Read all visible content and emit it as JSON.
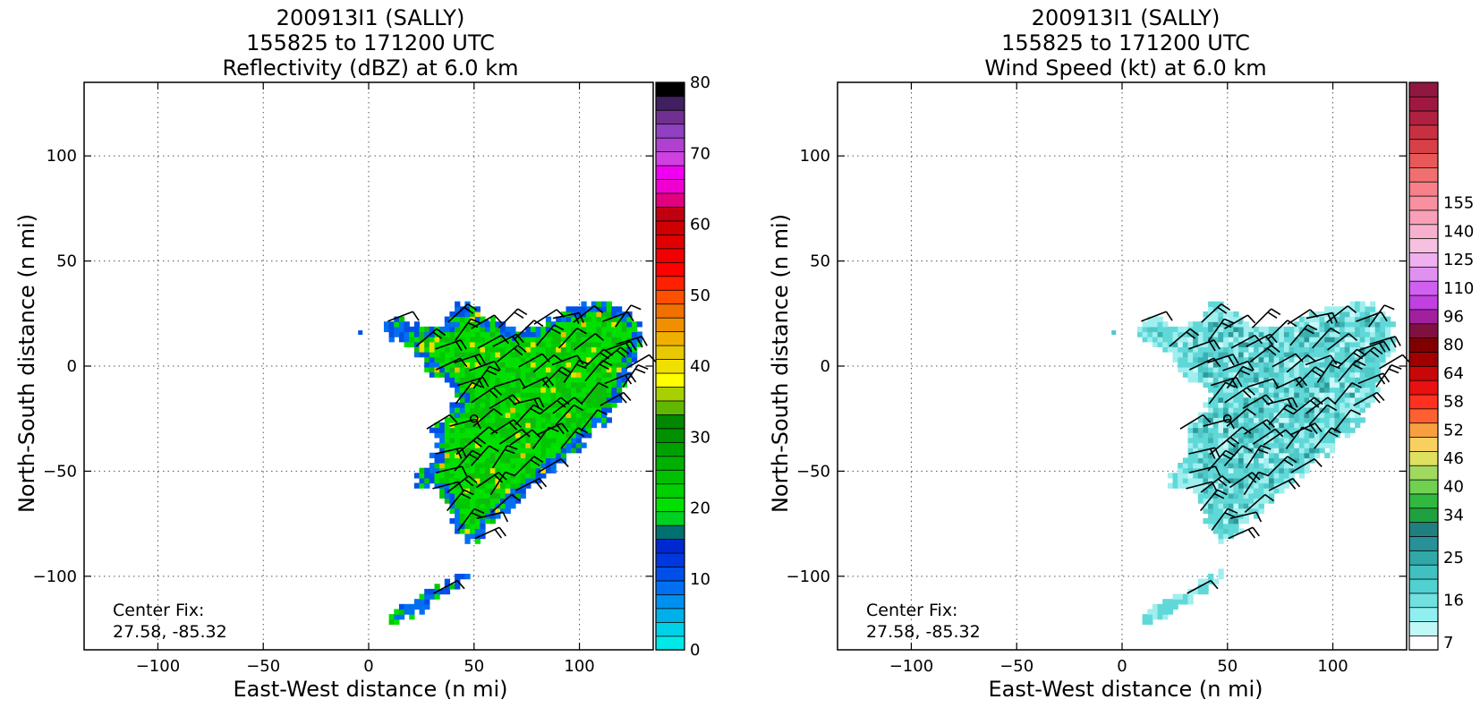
{
  "panels": [
    {
      "title": [
        "200913I1 (SALLY)",
        "155825 to 171200 UTC",
        "Reflectivity (dBZ) at 6.0 km"
      ],
      "xlabel": "East-West distance (n mi)",
      "ylabel": "North-South distance (n mi)",
      "note": [
        "Center Fix:",
        "27.58, -85.32"
      ]
    },
    {
      "title": [
        "200913I1 (SALLY)",
        "155825 to 171200 UTC",
        "Wind Speed (kt) at 6.0 km"
      ],
      "xlabel": "East-West distance (n mi)",
      "ylabel": "North-South distance (n mi)",
      "note": [
        "Center Fix:",
        "27.58, -85.32"
      ]
    }
  ],
  "chart_data": [
    {
      "type": "heatmap",
      "title": "200913I1 (SALLY) 155825 to 171200 UTC Reflectivity (dBZ) at 6.0 km",
      "xlabel": "East-West distance (n mi)",
      "ylabel": "North-South distance (n mi)",
      "xlim": [
        -135,
        135
      ],
      "ylim": [
        -135,
        135
      ],
      "xticks": [
        -100,
        -50,
        0,
        50,
        100
      ],
      "yticks": [
        -100,
        -50,
        0,
        50,
        100
      ],
      "xtick_labels": [
        "−100",
        "−50",
        "0",
        "50",
        "100"
      ],
      "ytick_labels": [
        "−100",
        "−50",
        "0",
        "50",
        "100"
      ],
      "grid": true,
      "center_mark": [
        50,
        -25
      ],
      "colorbar": {
        "min": 0,
        "max": 80,
        "step": 2.5,
        "ticks": [
          0,
          10,
          20,
          30,
          40,
          50,
          60,
          70,
          80
        ],
        "colors": [
          "#00e8e8",
          "#00d0e8",
          "#00b0e8",
          "#0090f0",
          "#0070f0",
          "#0050e8",
          "#0038e0",
          "#0028d0",
          "#007070",
          "#00d020",
          "#00e000",
          "#00d000",
          "#00c000",
          "#00b000",
          "#00a000",
          "#009000",
          "#008800",
          "#60b800",
          "#a8d000",
          "#ffff00",
          "#f0e000",
          "#e8c800",
          "#f0b000",
          "#f09000",
          "#f07000",
          "#ff5000",
          "#ff2000",
          "#ff0000",
          "#f00000",
          "#e00000",
          "#d00000",
          "#c00010",
          "#e00080",
          "#f000d0",
          "#f000f0",
          "#d040e0",
          "#b040d0",
          "#9040c0",
          "#703090",
          "#402060",
          "#000000"
        ]
      },
      "echo_region": {
        "description_free": true,
        "palette": [
          "#00e000",
          "#00c800",
          "#10b810",
          "#0050e8",
          "#0070f0",
          "#e8e000",
          "#e8c000"
        ]
      }
    },
    {
      "type": "heatmap",
      "title": "200913I1 (SALLY) 155825 to 171200 UTC Wind Speed (kt) at 6.0 km",
      "xlabel": "East-West distance (n mi)",
      "ylabel": "North-South distance (n mi)",
      "xlim": [
        -135,
        135
      ],
      "ylim": [
        -135,
        135
      ],
      "xticks": [
        -100,
        -50,
        0,
        50,
        100
      ],
      "yticks": [
        -100,
        -50,
        0,
        50,
        100
      ],
      "xtick_labels": [
        "−100",
        "−50",
        "0",
        "50",
        "100"
      ],
      "ytick_labels": [
        "−100",
        "−50",
        "0",
        "50",
        "100"
      ],
      "grid": true,
      "center_mark": [
        50,
        -25
      ],
      "colorbar": {
        "ticks": [
          7,
          16,
          25,
          34,
          40,
          46,
          52,
          58,
          64,
          80,
          96,
          110,
          125,
          140,
          155
        ],
        "colors": [
          "#ffffff",
          "#c0f8f8",
          "#90f0f0",
          "#70e0e0",
          "#50d0d0",
          "#40c0c0",
          "#30a8a8",
          "#289098",
          "#208080",
          "#20a040",
          "#30b840",
          "#70d050",
          "#a0d860",
          "#e0e060",
          "#f8d060",
          "#f8a040",
          "#ff6030",
          "#ff3020",
          "#e81010",
          "#c80808",
          "#a00000",
          "#800000",
          "#801040",
          "#a020a0",
          "#c040e0",
          "#d060f0",
          "#e090f0",
          "#f0b0f0",
          "#f8c0e0",
          "#f8b0d0",
          "#f8a0b8",
          "#f890a0",
          "#f88088",
          "#f07070",
          "#e85858",
          "#d84048",
          "#c83040",
          "#b02040",
          "#a01840",
          "#901840"
        ],
        "tick_positions": [
          0,
          3,
          6,
          9,
          11,
          13,
          15,
          17,
          19,
          21,
          23,
          25,
          27,
          29,
          31
        ]
      },
      "echo_region": {
        "palette": [
          "#60d8d8",
          "#50c8c8",
          "#a0eeee",
          "#3ab0b0",
          "#c8f8f8",
          "#2e9898"
        ]
      }
    }
  ]
}
